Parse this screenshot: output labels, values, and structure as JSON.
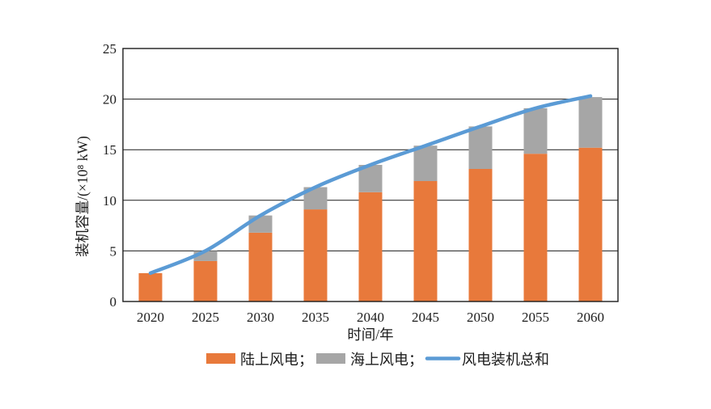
{
  "chart_data": {
    "type": "bar",
    "subtype": "stacked-bar-with-line",
    "title": "",
    "categories": [
      "2020",
      "2025",
      "2030",
      "2035",
      "2040",
      "2045",
      "2050",
      "2055",
      "2060"
    ],
    "series": [
      {
        "key": "onshore-wind",
        "name": "陆上风电",
        "type": "bar",
        "stack": true,
        "color": "#E8793B",
        "values": [
          2.8,
          4.0,
          6.8,
          9.1,
          10.8,
          11.9,
          13.1,
          14.6,
          15.2
        ]
      },
      {
        "key": "offshore-wind",
        "name": "海上风电",
        "type": "bar",
        "stack": true,
        "color": "#A6A6A6",
        "values": [
          0,
          1.0,
          1.7,
          2.2,
          2.7,
          3.5,
          4.2,
          4.5,
          5.0
        ]
      },
      {
        "key": "total-wind",
        "name": "风电装机总和",
        "type": "line",
        "color": "#5B9BD5",
        "values": [
          2.8,
          5.0,
          8.5,
          11.3,
          13.5,
          15.4,
          17.3,
          19.1,
          20.3
        ]
      }
    ],
    "xlabel": "时间/年",
    "ylabel": "装机容量/(×10⁸ kW)",
    "ylim": [
      0,
      25
    ],
    "yticks": [
      0,
      5,
      10,
      15,
      20,
      25
    ],
    "grid": true,
    "grid_color": "#1c1c1c",
    "axis_color": "#1c1c1c",
    "legend_position": "bottom",
    "legend": [
      {
        "label": "陆上风电；",
        "swatch": "rect",
        "color": "#E8793B"
      },
      {
        "label": "海上风电；",
        "swatch": "rect",
        "color": "#A6A6A6"
      },
      {
        "label": "风电装机总和",
        "swatch": "line",
        "color": "#5B9BD5"
      }
    ]
  }
}
